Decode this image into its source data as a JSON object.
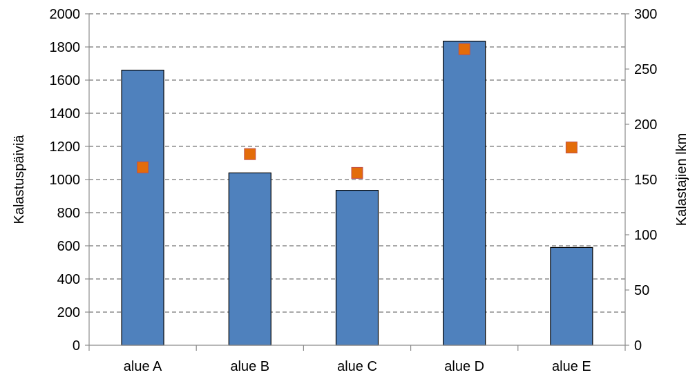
{
  "chart_data": {
    "type": "bar",
    "title": "",
    "categories": [
      "alue A",
      "alue B",
      "alue C",
      "alue D",
      "alue E"
    ],
    "series": [
      {
        "name": "Kalastuspäiviä",
        "type": "bar",
        "axis": "left",
        "color": "#4F81BD",
        "values": [
          1660,
          1040,
          935,
          1835,
          590
        ]
      },
      {
        "name": "Kalastajien lkm",
        "type": "scatter",
        "axis": "right",
        "color": "#E36C0A",
        "values": [
          161,
          173,
          156,
          268,
          179
        ]
      }
    ],
    "ylabel": "Kalastuspäiviä",
    "y2label": "Kalastajien lkm",
    "ylim": [
      0,
      2000
    ],
    "y2lim": [
      0,
      300
    ],
    "yticks": [
      "0",
      "200",
      "400",
      "600",
      "800",
      "1000",
      "1200",
      "1400",
      "1600",
      "1800",
      "2000"
    ],
    "y2ticks": [
      "0",
      "50",
      "100",
      "150",
      "200",
      "250",
      "300"
    ],
    "grid": "horizontal dashed",
    "legend": "none"
  }
}
